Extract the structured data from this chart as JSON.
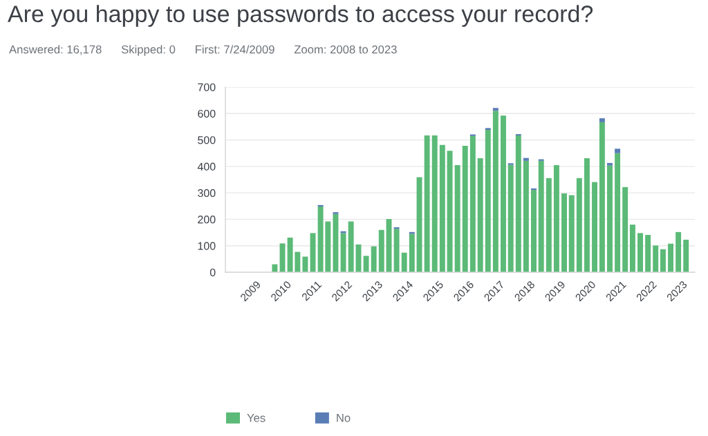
{
  "chart_data": {
    "type": "bar",
    "title": "Are you happy to use passwords to access your record?",
    "subtitle": "Answered: 16,178      Skipped: 0      First: 7/24/2009      Zoom: 2008 to 2023",
    "x": [
      "2009-08-15",
      "2009-11-15",
      "2010-02-15",
      "2010-05-15",
      "2010-08-15",
      "2010-11-15",
      "2011-02-15",
      "2011-05-15",
      "2011-08-15",
      "2011-11-15",
      "2012-02-15",
      "2012-05-15",
      "2012-08-15",
      "2012-11-15",
      "2013-02-15",
      "2013-05-15",
      "2013-08-15",
      "2013-11-15",
      "2014-02-15",
      "2014-05-15",
      "2014-08-15",
      "2014-11-15",
      "2015-02-15",
      "2015-05-15",
      "2015-08-15",
      "2015-11-15",
      "2016-02-15",
      "2016-05-15",
      "2016-08-15",
      "2016-11-15",
      "2017-02-15",
      "2017-05-15",
      "2017-08-15",
      "2017-11-15",
      "2018-02-15",
      "2018-05-15",
      "2018-08-15",
      "2018-11-15",
      "2019-02-15",
      "2019-05-15",
      "2019-08-15",
      "2019-11-15",
      "2020-02-15",
      "2020-05-15",
      "2020-08-15",
      "2020-11-15",
      "2021-02-15",
      "2021-05-15",
      "2021-08-15",
      "2021-11-15",
      "2022-02-15",
      "2022-05-15",
      "2022-08-15",
      "2022-11-15",
      "2023-02-15"
    ],
    "stacked": true,
    "series": [
      {
        "name": "Yes",
        "color": "#5bba77",
        "values": [
          30,
          109,
          131,
          77,
          59,
          148,
          248,
          192,
          220,
          148,
          192,
          105,
          62,
          98,
          160,
          201,
          164,
          74,
          145,
          359,
          517,
          517,
          481,
          459,
          405,
          478,
          515,
          431,
          538,
          610,
          592,
          406,
          517,
          421,
          311,
          421,
          356,
          405,
          298,
          291,
          356,
          431,
          341,
          567,
          403,
          450,
          322,
          180,
          148,
          141,
          101,
          87,
          108,
          152,
          123
        ]
      },
      {
        "name": "No",
        "color": "#5a7db5",
        "values": [
          null,
          null,
          null,
          null,
          null,
          null,
          6,
          null,
          7,
          7,
          null,
          null,
          null,
          null,
          null,
          null,
          6,
          null,
          7,
          null,
          null,
          null,
          null,
          null,
          null,
          null,
          6,
          null,
          7,
          11,
          null,
          6,
          5,
          11,
          6,
          6,
          null,
          null,
          null,
          null,
          null,
          null,
          null,
          15,
          10,
          17,
          null,
          null,
          null,
          null,
          null,
          null,
          null,
          null,
          null
        ]
      }
    ],
    "xlim": [
      "2008-01-01",
      "2023-06-01"
    ],
    "xticks": [
      "2009",
      "2010",
      "2011",
      "2012",
      "2013",
      "2014",
      "2015",
      "2016",
      "2017",
      "2018",
      "2019",
      "2020",
      "2021",
      "2022",
      "2023"
    ],
    "ylim": [
      0,
      700
    ],
    "yticks": [
      0,
      100,
      200,
      300,
      400,
      500,
      600,
      700
    ],
    "grid": "y",
    "legend": "bottom"
  }
}
